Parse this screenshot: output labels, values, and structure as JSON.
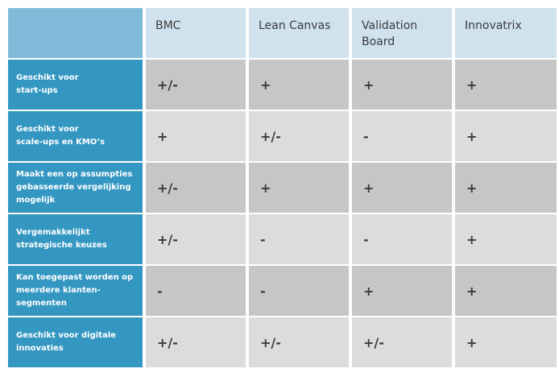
{
  "columns": [
    "BMC",
    "Lean Canvas",
    "Validation\nBoard",
    "Innovatrix"
  ],
  "rows": [
    {
      "label": "Geschikt voor\nstart-ups",
      "values": [
        "+/-",
        "+",
        "+",
        "+"
      ]
    },
    {
      "label": "Geschikt voor\nscale-ups en KMO’s",
      "values": [
        "+",
        "+/-",
        "-",
        "+"
      ]
    },
    {
      "label": "Maakt een op assumpties\ngebasseerde vergelijking\nmogelijk",
      "values": [
        "+/-",
        "+",
        "+",
        "+"
      ]
    },
    {
      "label": "Vergemakkelijkt\nstrategische keuzes",
      "values": [
        "+/-",
        "-",
        "-",
        "+"
      ]
    },
    {
      "label": "Kan toegepast worden op\nmeerdere klanten-\nsegmenten",
      "values": [
        "-",
        "-",
        "+",
        "+"
      ]
    },
    {
      "label": "Geschikt voor digitale\ninnovaties",
      "values": [
        "+/-",
        "+/-",
        "+/-",
        "+"
      ]
    }
  ],
  "colors": {
    "corner": "#7fbad9",
    "header": "#cfe2ee",
    "row_label": "#3497c2",
    "cell_dark": "#c6c6c6",
    "cell_light": "#dcdcdc"
  }
}
